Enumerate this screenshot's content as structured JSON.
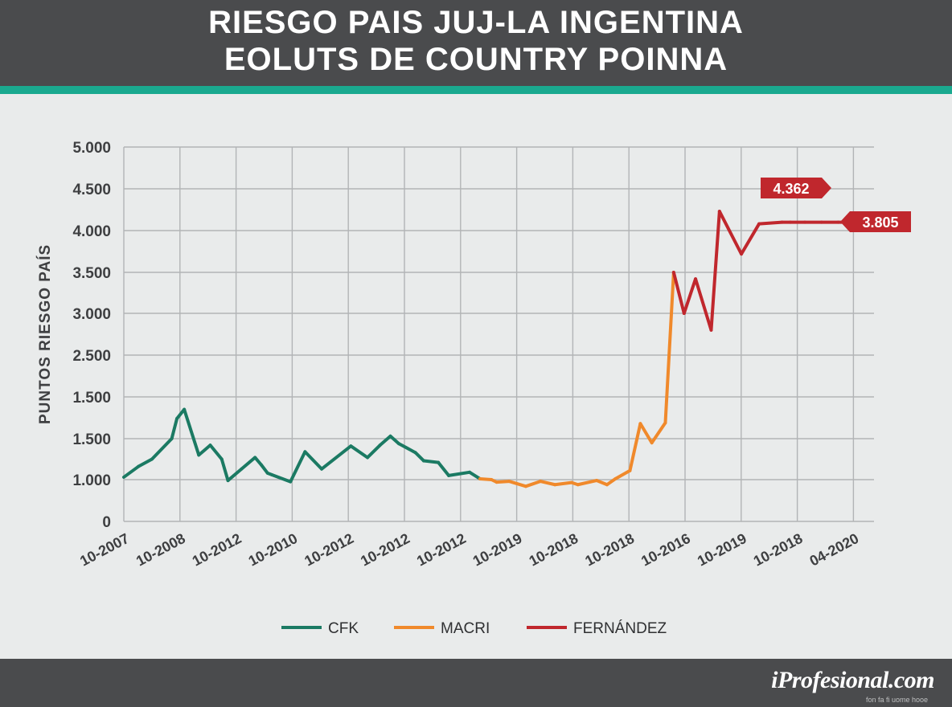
{
  "header": {
    "title_line1": "RIESGO PAIS JUJ-LA INGENTINA",
    "title_line2": "EOLUTS DE COUNTRY POINNA"
  },
  "footer": {
    "brand": "iProfesional.com",
    "tagline": "fon fa fi uome hooe"
  },
  "colors": {
    "header_bg": "#4a4b4d",
    "accent": "#1aa98f",
    "cfk": "#1b7a63",
    "macri": "#f0892b",
    "fernandez": "#c0272d"
  },
  "chart_data": {
    "type": "line",
    "ylabel": "PUNTOS RIESGO PAÍS",
    "y_ticks": [
      "5.000",
      "4.500",
      "4.000",
      "3.500",
      "3.000",
      "2.500",
      "1.500",
      "1.500",
      "1.000",
      "0"
    ],
    "x_ticks": [
      "10-2007",
      "10-2008",
      "10-2012",
      "10-2010",
      "10-2012",
      "10-2012",
      "10-2012",
      "10-2019",
      "10-2018",
      "10-2018",
      "10-2016",
      "10-2019",
      "10-2018",
      "04-2020"
    ],
    "x_tick_index": [
      0,
      2,
      4,
      6,
      8,
      10,
      12,
      14,
      16,
      18,
      20,
      22,
      24,
      26
    ],
    "grid": true,
    "legend_position": "bottom",
    "series": [
      {
        "name": "CFK",
        "color": "#1b7a63",
        "x": [
          0,
          0.7,
          1.35,
          2.3,
          2.55,
          2.9,
          3.6,
          4.15,
          4.7,
          5.0,
          5.65,
          6.3,
          6.6,
          6.9,
          7.1,
          8.0,
          8.7,
          9.5,
          10.9,
          11.7,
          12.3,
          12.8,
          13.2,
          14.0,
          14.4,
          15.1,
          15.6,
          16.6,
          17.1,
          17.65,
          17.9,
          18.5,
          19.3,
          20.0,
          20.7,
          21.5,
          21.8,
          22.7,
          23.2,
          23.6,
          24.3,
          24.8,
          25.35,
          26.0,
          26.4,
          26.9,
          27.45,
          28.2,
          28.6,
          29.65,
          30.5,
          31.6,
          32.0,
          32.7,
          33.5,
          34.3,
          34.8,
          35.3
        ],
        "y": [
          1030,
          1160,
          1250,
          1500,
          1740,
          1850,
          1300,
          1420,
          1250,
          980,
          1130,
          1270,
          1180,
          1080,
          1060,
          950,
          1340,
          1130,
          1410,
          1270,
          1420,
          1530,
          1440,
          1330,
          1230,
          1210,
          1050,
          1090,
          1010,
          1000,
          940,
          960,
          840,
          960,
          880,
          930,
          880,
          980,
          880,
          1010,
          1110,
          1680,
          1450,
          1690,
          3500,
          3000,
          3420,
          2800,
          4230,
          3720,
          4080,
          4100,
          4100,
          4100,
          4100,
          4100,
          4100,
          4100
        ]
      },
      {
        "name": "MACRI",
        "color": "#f0892b",
        "x": [],
        "y": []
      },
      {
        "name": "FERNÁNDEZ",
        "color": "#c0272d",
        "x": [],
        "y": []
      }
    ],
    "annotations": [
      {
        "text": "4.362",
        "color": "#c0272d"
      },
      {
        "text": "3.805",
        "color": "#c0272d"
      }
    ]
  }
}
